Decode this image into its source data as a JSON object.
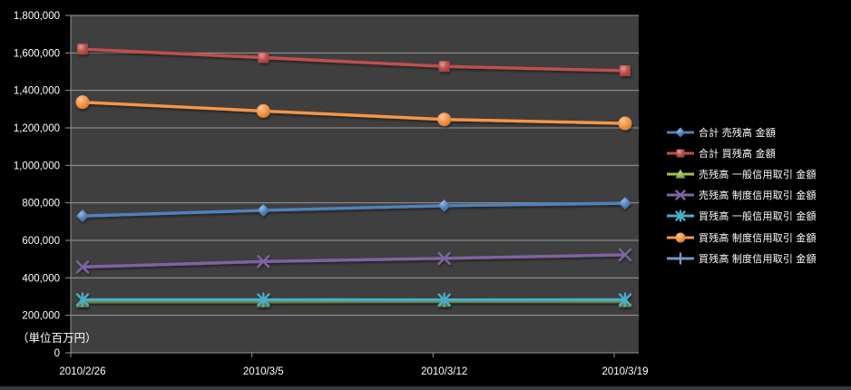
{
  "window": {
    "background": "#000000"
  },
  "chart_data": {
    "type": "line",
    "title": "",
    "unit_label": "（単位百万円）",
    "categories": [
      "2010/2/26",
      "2010/3/5",
      "2010/3/12",
      "2010/3/19"
    ],
    "y_axis": {
      "min": 0,
      "max": 1800000,
      "step": 200000
    },
    "grid": true,
    "legend_position": "right",
    "plot_background": "#3F3F3F",
    "axis_color": "#969696",
    "gridline_color": "#9A9A9A",
    "text_color": "#FFFFFF",
    "series": [
      {
        "name": "合計 売残高 金額",
        "color": "#4F81BD",
        "marker": "diamond",
        "values": [
          730000,
          760000,
          785000,
          798000
        ]
      },
      {
        "name": "合計 買残高 金額",
        "color": "#C0504D",
        "marker": "square",
        "values": [
          1620000,
          1575000,
          1528000,
          1505000
        ]
      },
      {
        "name": "売残高 一般信用取引 金額",
        "color": "#9BBB59",
        "marker": "triangle",
        "values": [
          272000,
          272000,
          274000,
          273000
        ]
      },
      {
        "name": "売残高 制度信用取引 金額",
        "color": "#8064A2",
        "marker": "x",
        "values": [
          458000,
          487000,
          504000,
          523000
        ]
      },
      {
        "name": "買残高 一般信用取引 金額",
        "color": "#4BACC6",
        "marker": "asterisk",
        "values": [
          283000,
          283000,
          282000,
          283000
        ]
      },
      {
        "name": "買残高 制度信用取引 金額",
        "color": "#F79646",
        "marker": "circle",
        "values": [
          1337000,
          1290000,
          1245000,
          1224000
        ]
      },
      {
        "name": "買残高 制度信用取引 金額",
        "color": "#7D93C3",
        "marker": "plus",
        "values": [
          null,
          null,
          null,
          null
        ]
      }
    ]
  }
}
